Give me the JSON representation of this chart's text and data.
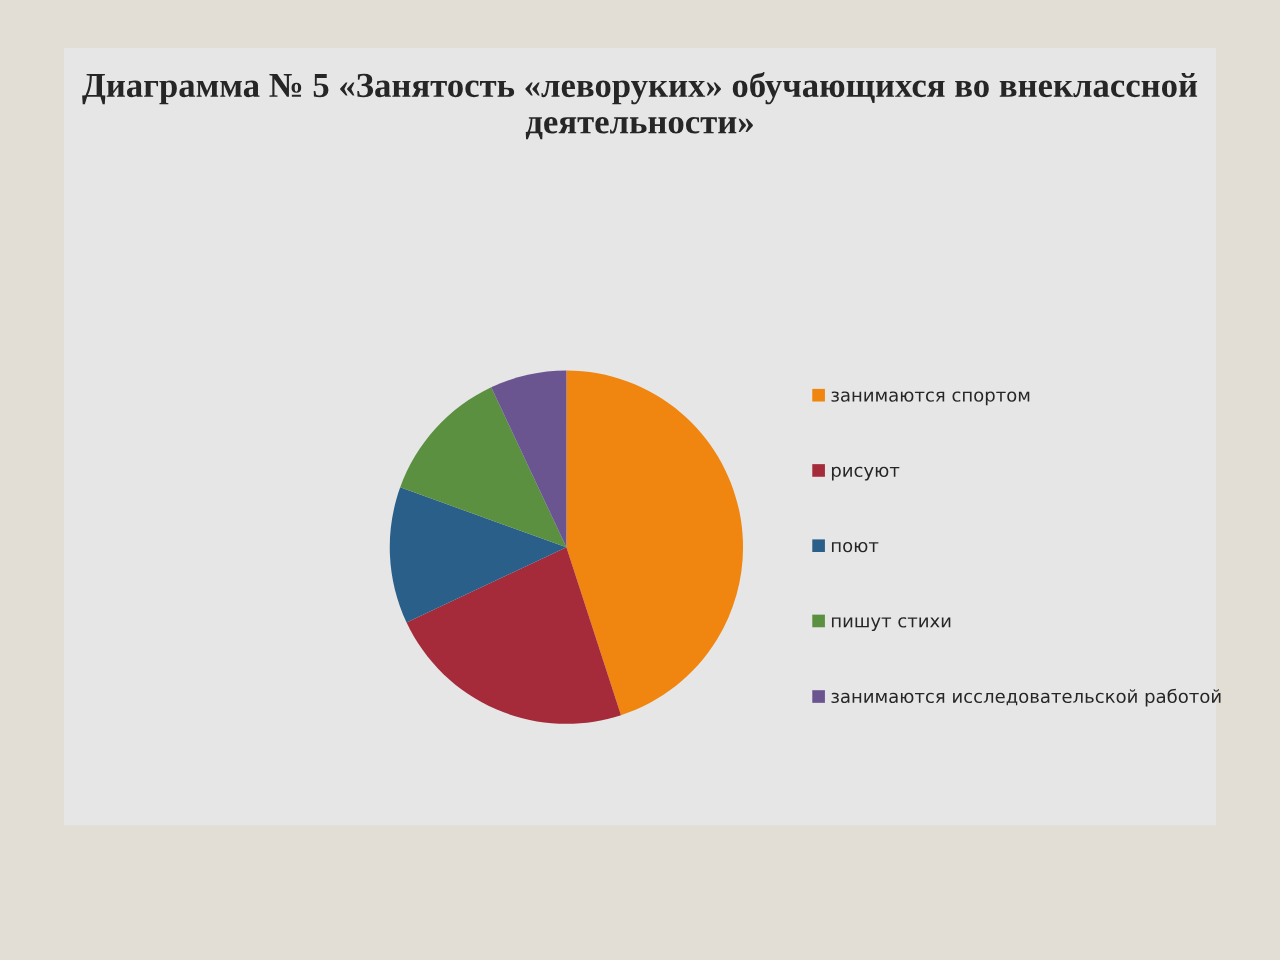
{
  "chart_data": {
    "type": "pie",
    "title": "Диаграмма № 5 «Занятость «леворуких» обучающихся во внеклассной деятельности»",
    "categories": [
      "занимаются спортом",
      "рисуют",
      "поют",
      "пишут стихи",
      "занимаются исследовательской работой"
    ],
    "values": [
      45,
      23,
      12.5,
      12.5,
      7
    ],
    "colors": [
      "#f0850f",
      "#a52a3a",
      "#2a5f8a",
      "#5a9040",
      "#6a5590"
    ],
    "legend": "right"
  }
}
